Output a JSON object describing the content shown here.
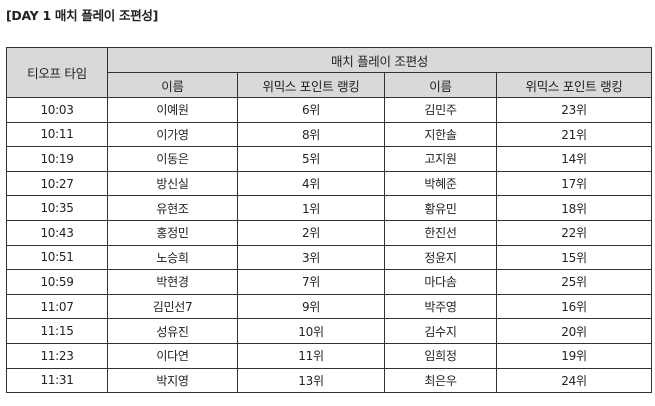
{
  "title": "[DAY 1 매치 플레이 조편성]",
  "table": {
    "header_tee": "티오프 타임",
    "header_group": "매치 플레이 조편성",
    "sub_headers": [
      "이름",
      "위믹스 포인트 랭킹",
      "이름",
      "위믹스 포인트 랭킹"
    ],
    "rows": [
      [
        "10:03",
        "이예원",
        "6위",
        "김민주",
        "23위"
      ],
      [
        "10:11",
        "이가영",
        "8위",
        "지한솔",
        "21위"
      ],
      [
        "10:19",
        "이동은",
        "5위",
        "고지원",
        "14위"
      ],
      [
        "10:27",
        "방신실",
        "4위",
        "박혜준",
        "17위"
      ],
      [
        "10:35",
        "유현조",
        "1위",
        "황유민",
        "18위"
      ],
      [
        "10:43",
        "홍정민",
        "2위",
        "한진선",
        "22위"
      ],
      [
        "10:51",
        "노승희",
        "3위",
        "정윤지",
        "15위"
      ],
      [
        "10:59",
        "박현경",
        "7위",
        "마다솜",
        "25위"
      ],
      [
        "11:07",
        "김민선7",
        "9위",
        "박주영",
        "16위"
      ],
      [
        "11:15",
        "성유진",
        "10위",
        "김수지",
        "20위"
      ],
      [
        "11:23",
        "이다연",
        "11위",
        "임희정",
        "19위"
      ],
      [
        "11:31",
        "박지영",
        "13위",
        "최은우",
        "24위"
      ]
    ]
  }
}
